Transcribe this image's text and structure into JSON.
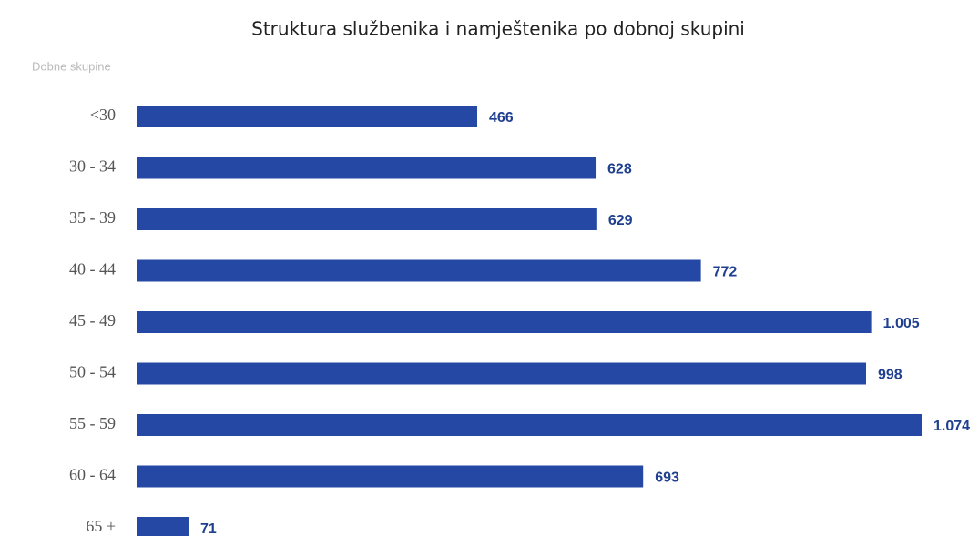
{
  "chart_data": {
    "type": "hbar",
    "title": "Struktura službenika i namještenika po dobnoj skupini",
    "y_label": "Dobne skupine",
    "categories": [
      "<30",
      "30 - 34",
      "35 - 39",
      "40 - 44",
      "45 - 49",
      "50 - 54",
      "55 - 59",
      "60 - 64",
      "65 +"
    ],
    "values": [
      466,
      628,
      629,
      772,
      1005,
      998,
      1074,
      693,
      71
    ],
    "value_labels": [
      "466",
      "628",
      "629",
      "772",
      "1.005",
      "998",
      "1.074",
      "693",
      "71"
    ],
    "color": "#2448a4",
    "label_color": "#1f3f8f"
  }
}
